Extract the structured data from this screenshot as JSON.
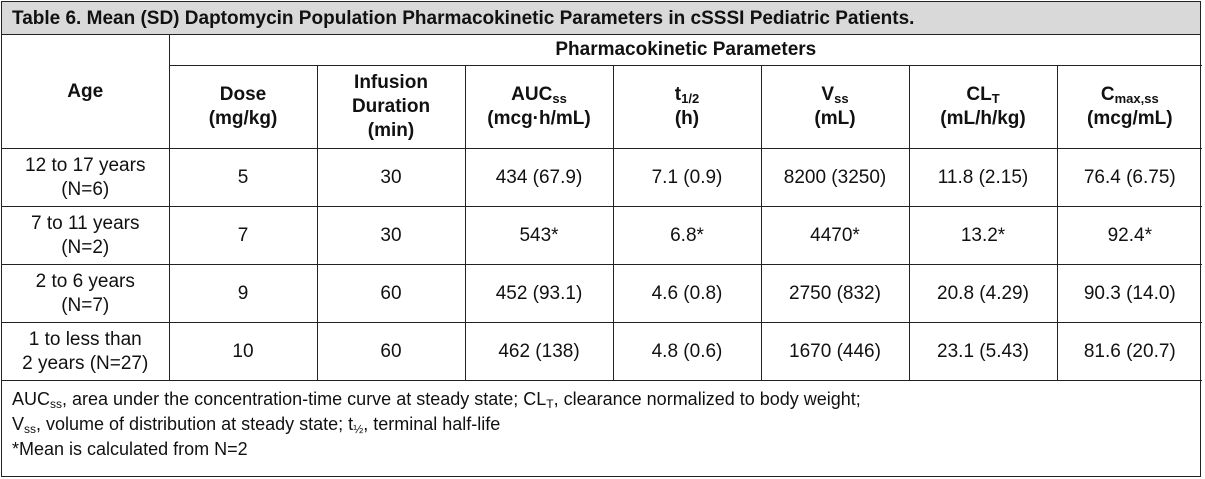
{
  "title": "Table 6. Mean (SD) Daptomycin Population Pharmacokinetic Parameters in cSSSI Pediatric Patients.",
  "header": {
    "age": "Age",
    "group": "Pharmacokinetic Parameters",
    "columns": [
      {
        "main": "Dose",
        "sub": "",
        "tail": "",
        "line2": "(mg/kg)"
      },
      {
        "main": "Infusion Duration",
        "sub": "",
        "tail": "",
        "line2": "(min)"
      },
      {
        "main": "AUC",
        "sub": "ss",
        "tail": "",
        "line2": "(mcg·h/mL)"
      },
      {
        "main": "t",
        "sub": "1/2",
        "tail": "",
        "line2": "(h)"
      },
      {
        "main": "V",
        "sub": "ss",
        "tail": "",
        "line2": "(mL)"
      },
      {
        "main": "CL",
        "sub": "T",
        "tail": "",
        "line2": "(mL/h/kg)"
      },
      {
        "main": "C",
        "sub": "max,ss",
        "tail": "",
        "line2": "(mcg/mL)"
      }
    ]
  },
  "rows": [
    {
      "age": [
        "12 to 17 years",
        "(N=6)"
      ],
      "cells": [
        "5",
        "30",
        "434 (67.9)",
        "7.1 (0.9)",
        "8200 (3250)",
        "11.8 (2.15)",
        "76.4 (6.75)"
      ]
    },
    {
      "age": [
        "7 to 11 years",
        "(N=2)"
      ],
      "cells": [
        "7",
        "30",
        "543*",
        "6.8*",
        "4470*",
        "13.2*",
        "92.4*"
      ]
    },
    {
      "age": [
        "2 to 6 years",
        "(N=7)"
      ],
      "cells": [
        "9",
        "60",
        "452 (93.1)",
        "4.6 (0.8)",
        "2750 (832)",
        "20.8 (4.29)",
        "90.3 (14.0)"
      ]
    },
    {
      "age": [
        "1 to less than",
        "2 years (N=27)"
      ],
      "cells": [
        "10",
        "60",
        "462 (138)",
        "4.8 (0.6)",
        "1670 (446)",
        "23.1 (5.43)",
        "81.6 (20.7)"
      ]
    }
  ],
  "footnotes": {
    "line1": [
      {
        "t": "AUC"
      },
      {
        "t": "ss",
        "sub": true
      },
      {
        "t": ", area under the concentration-time curve at steady state; CL"
      },
      {
        "t": "T",
        "sub": true
      },
      {
        "t": ", clearance normalized to body weight;"
      }
    ],
    "line2": [
      {
        "t": "V"
      },
      {
        "t": "ss",
        "sub": true
      },
      {
        "t": ", volume of distribution at steady state; t"
      },
      {
        "t": "½",
        "sub": true
      },
      {
        "t": ", terminal half-life"
      }
    ],
    "line3": [
      {
        "t": "*Mean is calculated from N=2"
      }
    ]
  }
}
